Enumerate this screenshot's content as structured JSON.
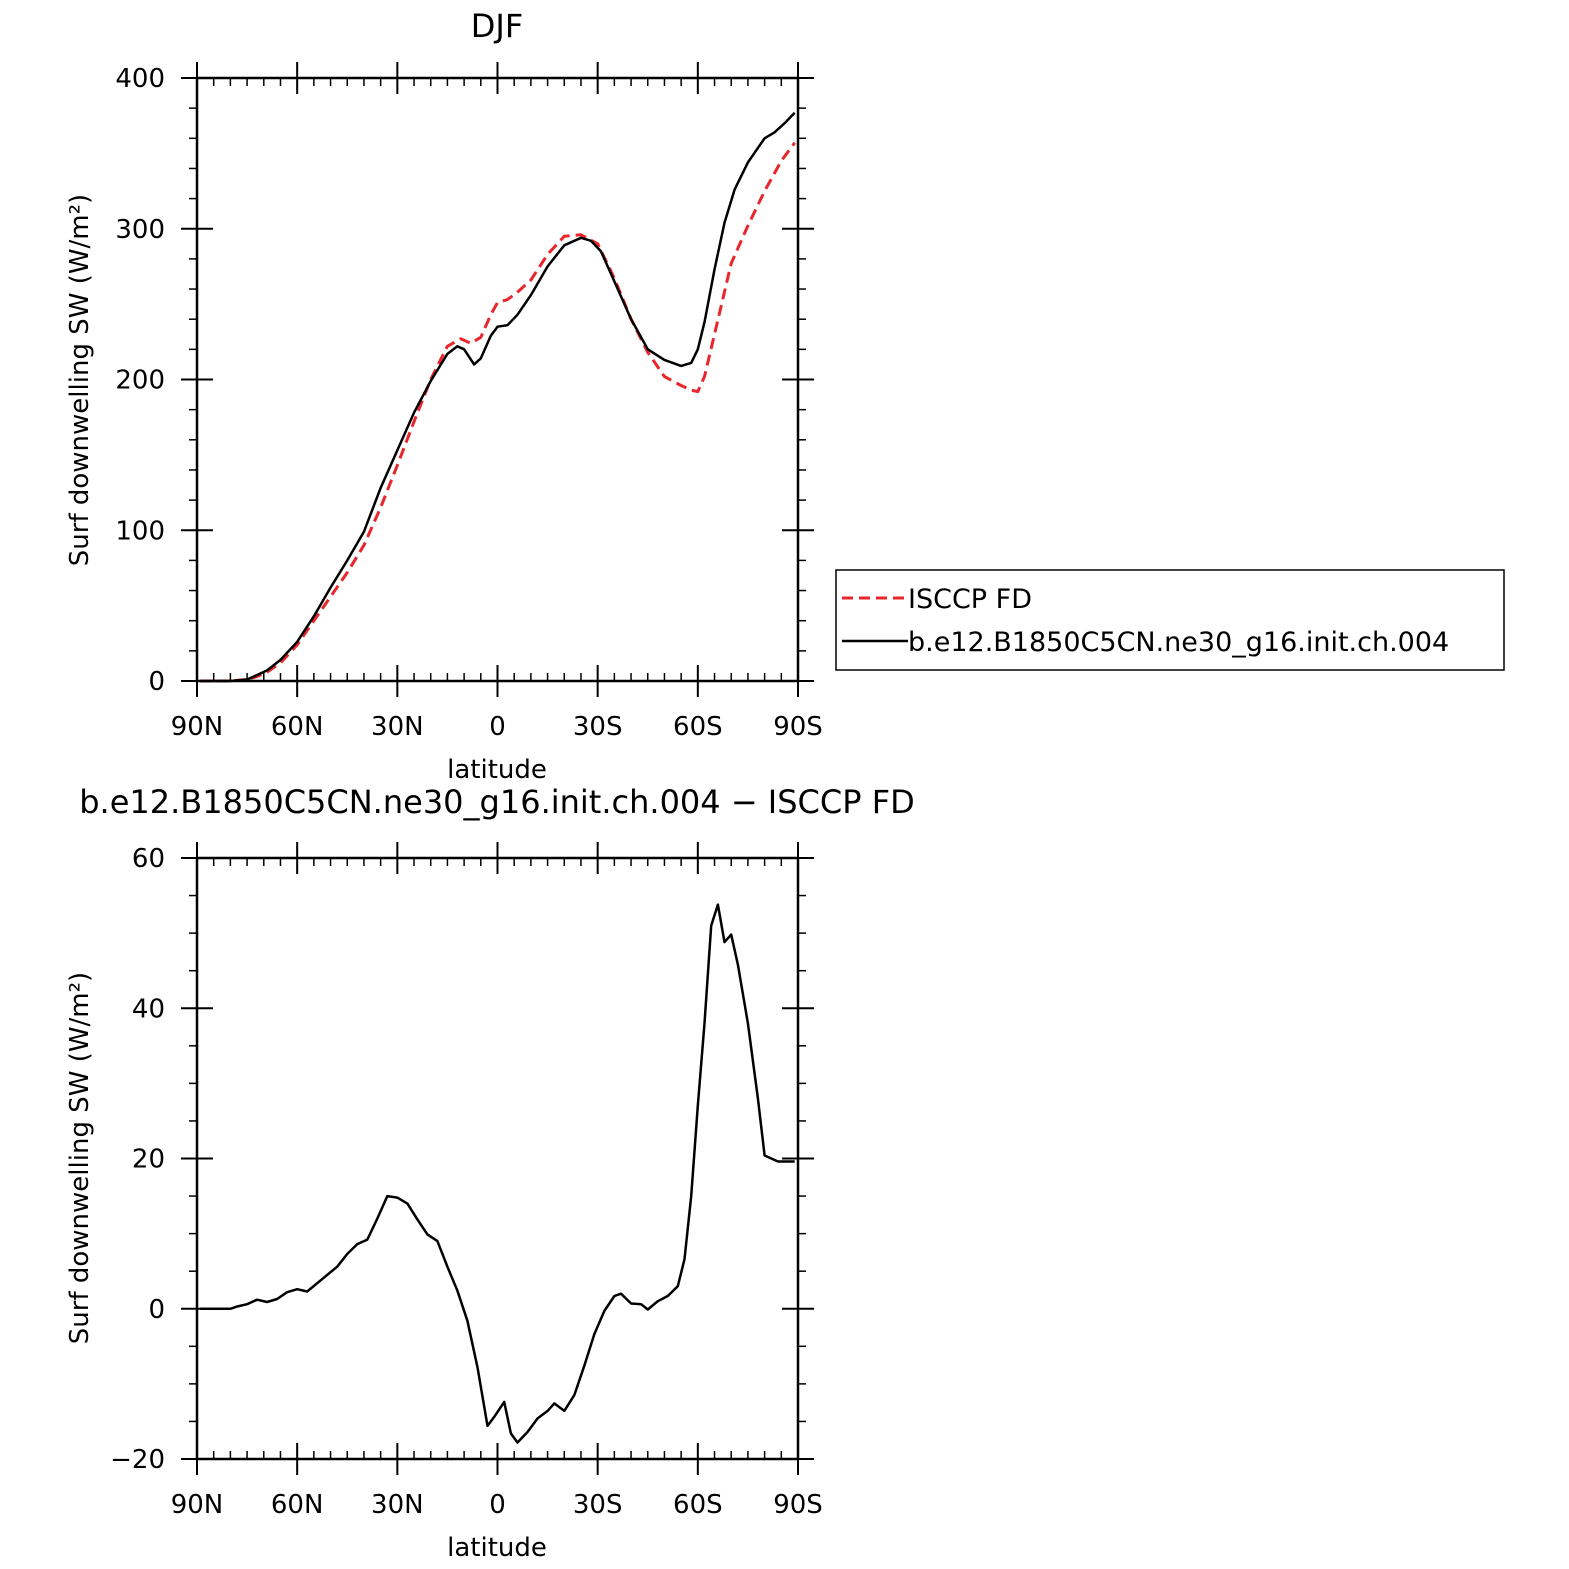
{
  "chart_data": [
    {
      "type": "line",
      "title": "DJF",
      "xlabel": "latitude",
      "ylabel": "Surf downwelling SW (W/m²)",
      "xlim": [
        90,
        -90
      ],
      "ylim": [
        0,
        400
      ],
      "x_ticks": [
        {
          "value": 90,
          "label": "90N"
        },
        {
          "value": 60,
          "label": "60N"
        },
        {
          "value": 30,
          "label": "30N"
        },
        {
          "value": 0,
          "label": "0"
        },
        {
          "value": -30,
          "label": "30S"
        },
        {
          "value": -60,
          "label": "60S"
        },
        {
          "value": -90,
          "label": "90S"
        }
      ],
      "y_ticks": [
        0,
        100,
        200,
        300,
        400
      ],
      "legend": {
        "placement": "right",
        "entries": [
          {
            "name": "ISCCP FD",
            "color": "#e8262b",
            "style": "dashed"
          },
          {
            "name": "b.e12.B1850C5CN.ne30_g16.init.ch.004",
            "color": "#000000",
            "style": "solid"
          }
        ]
      },
      "series": [
        {
          "name": "ISCCP FD",
          "color": "#e8262b",
          "style": "dashed",
          "x": [
            89,
            85,
            80,
            75,
            72,
            69,
            65,
            60,
            55,
            50,
            45,
            40,
            35,
            30,
            25,
            20,
            15,
            11,
            8,
            5,
            2,
            0,
            -3,
            -6,
            -10,
            -15,
            -20,
            -25,
            -30,
            -35,
            -40,
            -45,
            -50,
            -55,
            -58,
            -60,
            -62,
            -65,
            -70,
            -75,
            -80,
            -85,
            -89
          ],
          "y": [
            0,
            0,
            0,
            1,
            3,
            6,
            12,
            24,
            40,
            56,
            72,
            90,
            115,
            143,
            172,
            200,
            222,
            227,
            224,
            228,
            243,
            251,
            253,
            258,
            266,
            283,
            295,
            296,
            290,
            267,
            240,
            218,
            202,
            196,
            193,
            192,
            202,
            230,
            277,
            302,
            325,
            345,
            357
          ]
        },
        {
          "name": "b.e12.B1850C5CN.ne30_g16.init.ch.004",
          "color": "#000000",
          "style": "solid",
          "x": [
            89,
            85,
            80,
            75,
            72,
            69,
            65,
            60,
            55,
            50,
            45,
            40,
            35,
            30,
            25,
            20,
            15,
            12,
            10,
            7,
            5,
            2,
            0,
            -3,
            -6,
            -10,
            -15,
            -20,
            -25,
            -28,
            -31,
            -35,
            -40,
            -45,
            -50,
            -55,
            -58,
            -60,
            -62,
            -65,
            -68,
            -71,
            -75,
            -80,
            -83,
            -86,
            -89
          ],
          "y": [
            0,
            0,
            0,
            1,
            4,
            7,
            14,
            26,
            43,
            62,
            80,
            99,
            128,
            153,
            178,
            199,
            217,
            222,
            220,
            210,
            214,
            229,
            235,
            236,
            243,
            256,
            275,
            289,
            294,
            292,
            285,
            265,
            240,
            220,
            213,
            209,
            211,
            220,
            238,
            273,
            304,
            326,
            344,
            360,
            364,
            370,
            377
          ]
        }
      ]
    },
    {
      "type": "line",
      "title": "b.e12.B1850C5CN.ne30_g16.init.ch.004 − ISCCP FD",
      "xlabel": "latitude",
      "ylabel": "Surf downwelling SW (W/m²)",
      "xlim": [
        90,
        -90
      ],
      "ylim": [
        -20,
        60
      ],
      "x_ticks": [
        {
          "value": 90,
          "label": "90N"
        },
        {
          "value": 60,
          "label": "60N"
        },
        {
          "value": 30,
          "label": "30N"
        },
        {
          "value": 0,
          "label": "0"
        },
        {
          "value": -30,
          "label": "30S"
        },
        {
          "value": -60,
          "label": "60S"
        },
        {
          "value": -90,
          "label": "90S"
        }
      ],
      "y_ticks": [
        -20,
        0,
        20,
        40,
        60
      ],
      "y_tick_labels": [
        "−20",
        "0",
        "20",
        "40",
        "60"
      ],
      "series": [
        {
          "color": "#000000",
          "style": "solid",
          "x": [
            89,
            85,
            80,
            78,
            75,
            72,
            69,
            66,
            63,
            60,
            57,
            54,
            51,
            48,
            45,
            42,
            39,
            36,
            33,
            30,
            27,
            24,
            21,
            18,
            15,
            12,
            9,
            6,
            3,
            1,
            -2,
            -4,
            -6,
            -9,
            -12,
            -15,
            -17,
            -20,
            -23,
            -26,
            -29,
            -32,
            -35,
            -37,
            -40,
            -43,
            -45,
            -48,
            -51,
            -54,
            -56,
            -58,
            -60,
            -62,
            -64,
            -66,
            -68,
            -70,
            -72,
            -75,
            -78,
            -80,
            -84,
            -86,
            -89
          ],
          "y": [
            0,
            0,
            0,
            0.3,
            0.6,
            1.2,
            0.9,
            1.3,
            2.2,
            2.6,
            2.3,
            3.4,
            4.5,
            5.6,
            7.3,
            8.6,
            9.2,
            12,
            15,
            14.8,
            14,
            11.9,
            9.9,
            9,
            5.6,
            2.4,
            -1.6,
            -7.8,
            -15.6,
            -14.4,
            -12.4,
            -16.6,
            -17.8,
            -16.4,
            -14.6,
            -13.6,
            -12.6,
            -13.6,
            -11.5,
            -7.6,
            -3.4,
            -0.3,
            1.7,
            2,
            0.7,
            0.6,
            -0.1,
            1,
            1.7,
            3,
            6.6,
            15,
            27,
            38,
            51,
            53.8,
            48.8,
            49.8,
            45.8,
            38,
            28,
            20.4,
            19.6,
            19.6,
            19.6
          ]
        }
      ]
    }
  ]
}
